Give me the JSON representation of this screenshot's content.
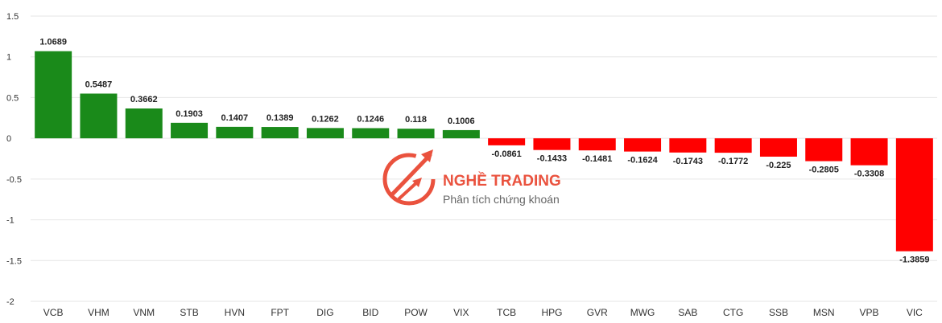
{
  "chart_data": {
    "type": "bar",
    "categories": [
      "VCB",
      "VHM",
      "VNM",
      "STB",
      "HVN",
      "FPT",
      "DIG",
      "BID",
      "POW",
      "VIX",
      "TCB",
      "HPG",
      "GVR",
      "MWG",
      "SAB",
      "CTG",
      "SSB",
      "MSN",
      "VPB",
      "VIC"
    ],
    "values": [
      1.0689,
      0.5487,
      0.3662,
      0.1903,
      0.1407,
      0.1389,
      0.1262,
      0.1246,
      0.118,
      0.1006,
      -0.0861,
      -0.1433,
      -0.1481,
      -0.1624,
      -0.1743,
      -0.1772,
      -0.225,
      -0.2805,
      -0.3308,
      -1.3859
    ],
    "value_labels": [
      "1.0689",
      "0.5487",
      "0.3662",
      "0.1903",
      "0.1407",
      "0.1389",
      "0.1262",
      "0.1246",
      "0.118",
      "0.1006",
      "-0.0861",
      "-0.1433",
      "-0.1481",
      "-0.1624",
      "-0.1743",
      "-0.1772",
      "-0.225",
      "-0.2805",
      "-0.3308",
      "-1.3859"
    ],
    "y_ticks": [
      1.5,
      1,
      0.5,
      0,
      -0.5,
      -1,
      -1.5,
      -2
    ],
    "ylim": [
      -2,
      1.5
    ],
    "grid": true,
    "legend": "none",
    "colors": {
      "positive": "#1a8a1a",
      "negative": "#ff0000",
      "grid": "#e6e6e6"
    }
  },
  "watermark": {
    "title": "NGHỀ TRADING",
    "subtitle": "Phân tích chứng khoán",
    "color": "#e8402a",
    "icon": "trading-logo-icon"
  }
}
